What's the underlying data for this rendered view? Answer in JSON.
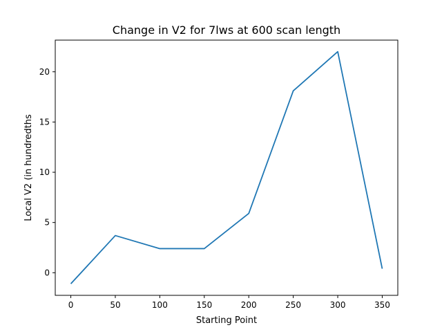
{
  "chart_data": {
    "type": "line",
    "title": "Change in V2 for 7lws at 600 scan length",
    "xlabel": "Starting Point",
    "ylabel": "Local V2 (in hundredths",
    "x": [
      0,
      50,
      100,
      150,
      200,
      250,
      300,
      350
    ],
    "series": [
      {
        "values": [
          -1.1,
          3.7,
          2.4,
          2.4,
          5.9,
          18.1,
          22.0,
          0.4
        ],
        "color": "#1f77b4"
      }
    ],
    "xlim": [
      -17.5,
      367.5
    ],
    "ylim": [
      -2.25,
      23.15
    ],
    "xticks": [
      0,
      50,
      100,
      150,
      200,
      250,
      300,
      350
    ],
    "yticks": [
      0,
      5,
      10,
      15,
      20
    ],
    "grid": false,
    "legend": "none"
  }
}
